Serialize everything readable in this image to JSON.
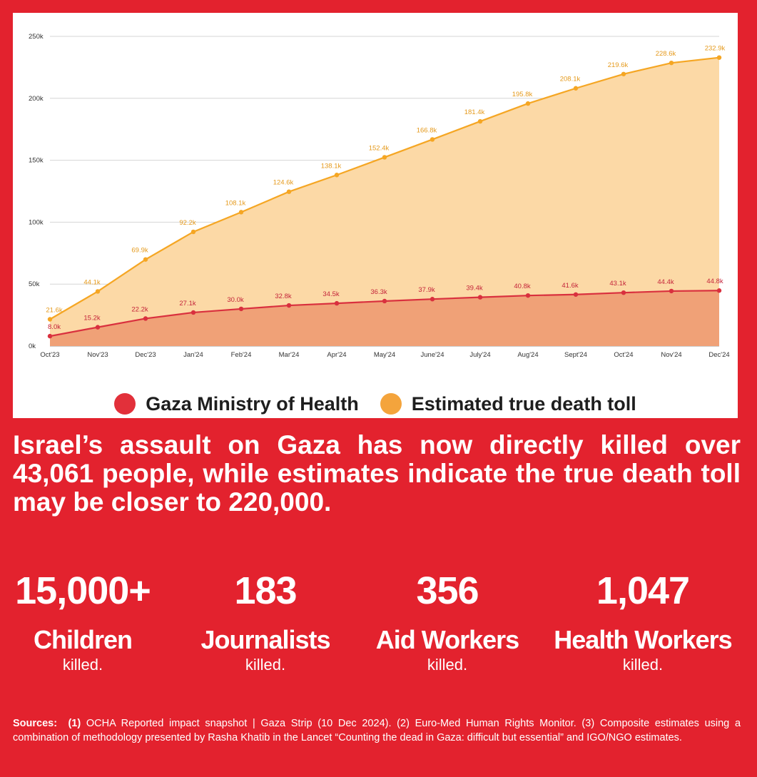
{
  "chart_data": {
    "type": "area",
    "categories": [
      "Oct'23",
      "Nov'23",
      "Dec'23",
      "Jan'24",
      "Feb'24",
      "Mar'24",
      "Apr'24",
      "May'24",
      "June'24",
      "July'24",
      "Aug'24",
      "Sept'24",
      "Oct'24",
      "Nov'24",
      "Dec'24"
    ],
    "y_ticks": [
      "0k",
      "50k",
      "100k",
      "150k",
      "200k",
      "250k"
    ],
    "ylim": [
      0,
      250000
    ],
    "grid": true,
    "legend_position": "bottom",
    "series": [
      {
        "name": "Estimated true death toll",
        "color": "#f5a623",
        "fill": "#fcd9a6",
        "values": [
          21600,
          44100,
          69900,
          92200,
          108100,
          124600,
          138100,
          152400,
          166800,
          181400,
          195800,
          208100,
          219600,
          228600,
          232900
        ],
        "labels": [
          "21.6k",
          "44.1k",
          "69.9k",
          "92.2k",
          "108.1k",
          "124.6k",
          "138.1k",
          "152.4k",
          "166.8k",
          "181.4k",
          "195.8k",
          "208.1k",
          "219.6k",
          "228.6k",
          "232.9k"
        ]
      },
      {
        "name": "Gaza Ministry of Health",
        "color": "#d9303e",
        "fill": "#f0a177",
        "values": [
          8000,
          15200,
          22200,
          27100,
          30000,
          32800,
          34500,
          36300,
          37900,
          39400,
          40800,
          41600,
          43100,
          44400,
          44800
        ],
        "labels": [
          "8.0k",
          "15.2k",
          "22.2k",
          "27.1k",
          "30.0k",
          "32.8k",
          "34.5k",
          "36.3k",
          "37.9k",
          "39.4k",
          "40.8k",
          "41.6k",
          "43.1k",
          "44.4k",
          "44.8k"
        ]
      }
    ]
  },
  "legend": {
    "moh_label": "Gaza Ministry of Health",
    "moh_color": "#e2303a",
    "true_label": "Estimated true death toll",
    "true_color": "#f4a43c"
  },
  "headline": "Israel’s assault on Gaza has now directly killed over 43,061 people, while estimates indicate the true death toll may be closer to 220,000.",
  "stats": [
    {
      "value": "15,000+",
      "label": "Children",
      "sub": "killed."
    },
    {
      "value": "183",
      "label": "Journalists",
      "sub": "killed."
    },
    {
      "value": "356",
      "label": "Aid Workers",
      "sub": "killed."
    },
    {
      "value": "1,047",
      "label": "Health Workers",
      "sub": "killed."
    }
  ],
  "sources": {
    "heading": "Sources:",
    "ref1": "(1)",
    "text1": " OCHA Reported impact snapshot | Gaza Strip (10 Dec 2024). (2) Euro-Med Human Rights Monitor. (3) Composite estimates using a combination of methodology presented by Rasha Khatib in the Lancet “Counting the dead in Gaza: difficult but essential” and IGO/NGO estimates."
  }
}
